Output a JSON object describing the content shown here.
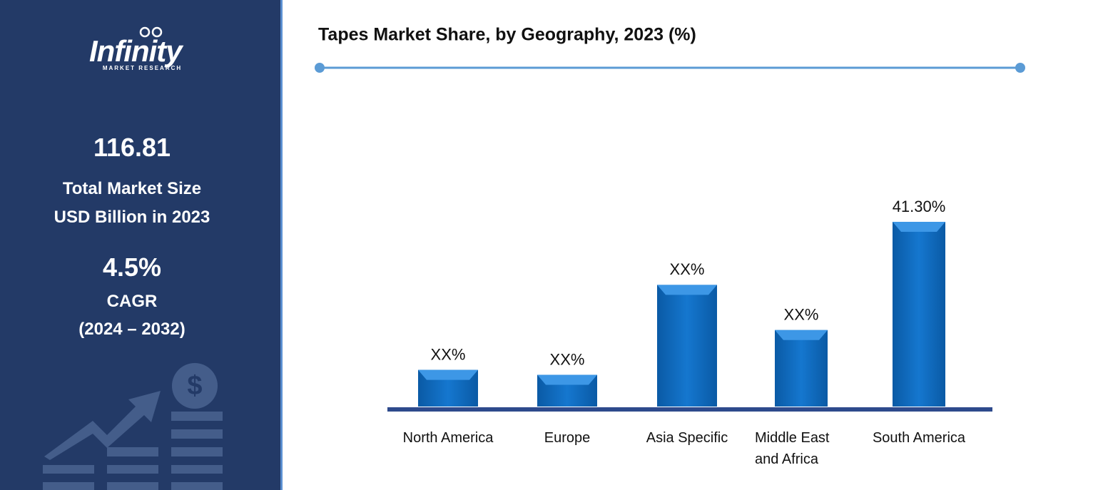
{
  "sidebar": {
    "logo": "Infinity",
    "logo_sub": "MARKET RESEARCH",
    "market_size": "116.81",
    "market_size_label_1": "Total Market Size",
    "market_size_label_2": "USD Billion in 2023",
    "cagr": "4.5%",
    "cagr_label": "CAGR",
    "cagr_period": "(2024 – 2032)"
  },
  "chart_data": {
    "type": "bar",
    "title": "Tapes Market Share, by Geography, 2023 (%)",
    "categories": [
      "North America",
      "Europe",
      "Asia Specific",
      "Middle East and Africa",
      "South America"
    ],
    "values": [
      8.2,
      7.1,
      27.2,
      17.1,
      41.3
    ],
    "value_labels": [
      "XX%",
      "XX%",
      "XX%",
      "XX%",
      "41.30%"
    ],
    "color": "#0b6cc0"
  }
}
